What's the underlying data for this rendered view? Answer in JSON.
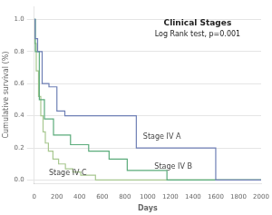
{
  "chart_data": {
    "type": "line",
    "title": "Clinical Stages",
    "subtitle": "Log Rank test, p=0.001",
    "xlabel": "Days",
    "ylabel": "Cumulative survival (%)",
    "xlim": [
      0,
      2000
    ],
    "ylim": [
      -0.02,
      1.08
    ],
    "xticks": [
      0,
      200,
      400,
      600,
      800,
      1000,
      1200,
      1400,
      1600,
      1800,
      2000
    ],
    "yticks": [
      {
        "value": 0.0,
        "label": "0.0"
      },
      0.2,
      0.4,
      0.6,
      0.8,
      {
        "value": 1.0,
        "label": "1.0"
      }
    ],
    "grid": "y",
    "line_style": "step",
    "series": [
      {
        "color": "#6e7fb5",
        "x": [
          0,
          8,
          8,
          30,
          30,
          70,
          70,
          130,
          130,
          200,
          200,
          270,
          270,
          900,
          900,
          1500,
          1500,
          1600,
          1600,
          2000
        ],
        "values": [
          1.0,
          1.0,
          0.88,
          0.88,
          0.8,
          0.8,
          0.6,
          0.6,
          0.58,
          0.58,
          0.43,
          0.43,
          0.4,
          0.4,
          0.2,
          0.2,
          0.2,
          0.2,
          0.0,
          0.0
        ]
      },
      {
        "color": "#5aab7a",
        "x": [
          0,
          10,
          10,
          45,
          45,
          90,
          90,
          170,
          170,
          320,
          320,
          480,
          480,
          660,
          660,
          820,
          820,
          970,
          970,
          1170,
          1170,
          2000
        ],
        "values": [
          1.0,
          1.0,
          0.8,
          0.8,
          0.5,
          0.5,
          0.38,
          0.38,
          0.28,
          0.28,
          0.22,
          0.22,
          0.18,
          0.18,
          0.13,
          0.13,
          0.06,
          0.06,
          0.06,
          0.06,
          0.0,
          0.0
        ]
      },
      {
        "color": "#a8c890",
        "x": [
          0,
          4,
          4,
          18,
          18,
          38,
          38,
          58,
          58,
          78,
          78,
          98,
          98,
          125,
          125,
          165,
          165,
          215,
          215,
          275,
          275,
          340,
          340,
          410,
          410,
          540,
          540,
          2000
        ],
        "values": [
          1.0,
          1.0,
          0.85,
          0.85,
          0.68,
          0.68,
          0.52,
          0.52,
          0.4,
          0.4,
          0.3,
          0.3,
          0.23,
          0.23,
          0.18,
          0.18,
          0.13,
          0.13,
          0.1,
          0.1,
          0.07,
          0.07,
          0.05,
          0.05,
          0.03,
          0.03,
          0.0,
          0.0
        ]
      }
    ],
    "annotations": [
      {
        "text": "Stage IV A",
        "x": 960,
        "y": 0.27
      },
      {
        "text": "Stage IV B",
        "x": 1060,
        "y": 0.08
      },
      {
        "text": "Stage IV C",
        "x": 130,
        "y": 0.045
      }
    ]
  }
}
